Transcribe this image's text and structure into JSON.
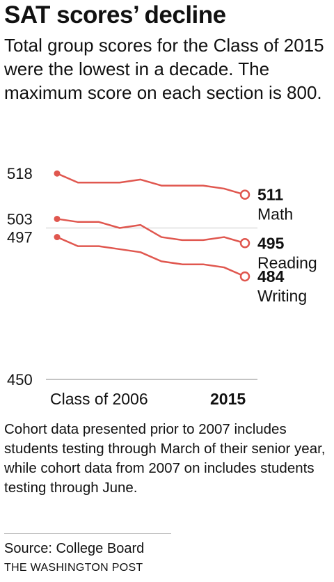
{
  "title": "SAT scores’ decline",
  "subtitle": "Total group scores for the Class of 2015 were the lowest in a decade. The maximum score on each section is 800.",
  "note": "Cohort data presented prior to 2007 includes students testing through March of their senior year, while cohort data from 2007 on includes students testing through June.",
  "source": "Source: College Board",
  "credit": "THE WASHINGTON POST",
  "chart_data": {
    "type": "line",
    "x": [
      2006,
      2007,
      2008,
      2009,
      2010,
      2011,
      2012,
      2013,
      2014,
      2015
    ],
    "x_tick_labels": [
      {
        "x": 2006,
        "label": "Class of 2006"
      },
      {
        "x": 2015,
        "label": "2015"
      }
    ],
    "ylim": [
      450,
      523
    ],
    "y_ticks": [
      450
    ],
    "reference_line": 500,
    "series": [
      {
        "name": "Math",
        "color": "#e0574f",
        "start_label": "518",
        "end_label": "511",
        "values": [
          518,
          515,
          515,
          515,
          516,
          514,
          514,
          514,
          513,
          511
        ]
      },
      {
        "name": "Reading",
        "color": "#e0574f",
        "start_label": "503",
        "end_label": "495",
        "values": [
          503,
          502,
          502,
          500,
          501,
          497,
          496,
          496,
          497,
          495
        ]
      },
      {
        "name": "Writing",
        "color": "#e0574f",
        "start_label": "497",
        "end_label": "484",
        "values": [
          497,
          494,
          494,
          493,
          492,
          489,
          488,
          488,
          487,
          484
        ]
      }
    ],
    "grid": false,
    "legend": "direct labels at line ends"
  }
}
